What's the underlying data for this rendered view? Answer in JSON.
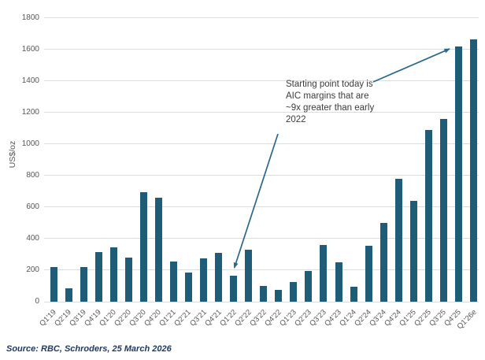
{
  "chart_data": {
    "type": "bar",
    "title": "",
    "xlabel": "",
    "ylabel": "US$/oz",
    "ylim": [
      0,
      1800
    ],
    "y_tick_interval": 200,
    "y_tick_labels": [
      "0",
      "200",
      "400",
      "600",
      "800",
      "1000",
      "1200",
      "1400",
      "1600",
      "1800"
    ],
    "grid": true,
    "legend": false,
    "categories": [
      "Q1'19",
      "Q2'19",
      "Q3'19",
      "Q4'19",
      "Q1'20",
      "Q2'20",
      "Q3'20",
      "Q4'20",
      "Q1'21",
      "Q2'21",
      "Q3'21",
      "Q4'21",
      "Q1'22",
      "Q2'22",
      "Q3'22",
      "Q4'22",
      "Q1'23",
      "Q2'23",
      "Q3'23",
      "Q4'23",
      "Q1'24",
      "Q2'24",
      "Q3'24",
      "Q4'24",
      "Q1'25",
      "Q2'25",
      "Q3'25",
      "Q4'25",
      "Q1'26e"
    ],
    "values": [
      220,
      85,
      220,
      315,
      345,
      280,
      695,
      660,
      255,
      185,
      275,
      310,
      165,
      330,
      100,
      75,
      125,
      195,
      360,
      250,
      95,
      355,
      500,
      780,
      640,
      1090,
      1160,
      1620,
      1665
    ],
    "annotation": {
      "lines": [
        "Starting point today is",
        "AIC margins that are",
        "~9x greater than early",
        "2022"
      ],
      "arrow_targets": [
        "Q4'25",
        "Q1'22"
      ]
    }
  },
  "source_note": "Source: RBC, Schroders, 25 March 2026",
  "colors": {
    "bar": "#1e5c77",
    "arrow": "#2a6889",
    "grid": "#dcdcdc",
    "axis_text": "#555555",
    "annotation_text": "#3b3b3b",
    "source_text": "#203864"
  }
}
